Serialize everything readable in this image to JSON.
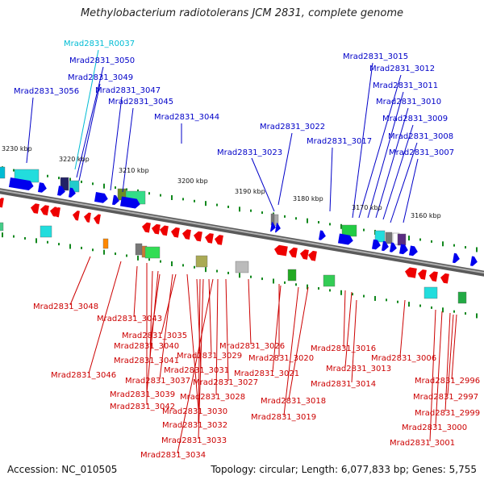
{
  "title": "Methylobacterium radiotolerans JCM 2831, complete genome",
  "accession": "Accession: NC_010505",
  "topology": "Topology: circular; Length: 6,077,833 bp; Genes: 5,755",
  "colors": {
    "top_label": "#0000c8",
    "rna_label": "#00bcd4",
    "bottom_label": "#cc0000",
    "forward_gene": "#0000ee",
    "reverse_gene": "#ee0000",
    "backbone": "#808080",
    "gc_tick": "#11881d"
  },
  "kbp_ticks": [
    "3230 kbp",
    "3220 kbp",
    "3210 kbp",
    "3200 kbp",
    "3190 kbp",
    "3180 kbp",
    "3170 kbp",
    "3160 kbp"
  ],
  "top_labels": [
    "Mrad2831_R0037",
    "Mrad2831_3050",
    "Mrad2831_3049",
    "Mrad2831_3056",
    "Mrad2831_3047",
    "Mrad2831_3045",
    "Mrad2831_3044",
    "Mrad2831_3022",
    "Mrad2831_3023",
    "Mrad2831_3015",
    "Mrad2831_3012",
    "Mrad2831_3011",
    "Mrad2831_3010",
    "Mrad2831_3009",
    "Mrad2831_3008",
    "Mrad2831_3017",
    "Mrad2831_3007"
  ],
  "bottom_labels": [
    "Mrad2831_3048",
    "Mrad2831_3043",
    "Mrad2831_3035",
    "Mrad2831_3040",
    "Mrad2831_3026",
    "Mrad2831_3029",
    "Mrad2831_3041",
    "Mrad2831_3020",
    "Mrad2831_3016",
    "Mrad2831_3031",
    "Mrad2831_3006",
    "Mrad2831_3046",
    "Mrad2831_3037",
    "Mrad2831_3027",
    "Mrad2831_3021",
    "Mrad2831_3013",
    "Mrad2831_3039",
    "Mrad2831_3028",
    "Mrad2831_3014",
    "Mrad2831_3042",
    "Mrad2831_3018",
    "Mrad2831_3030",
    "Mrad2831_3019",
    "Mrad2831_3032",
    "Mrad2831_3033",
    "Mrad2831_3034",
    "Mrad2831_2996",
    "Mrad2831_2997",
    "Mrad2831_2999",
    "Mrad2831_3000",
    "Mrad2831_3001"
  ]
}
